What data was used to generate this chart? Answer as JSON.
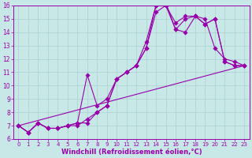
{
  "xlabel": "Windchill (Refroidissement éolien,°C)",
  "xlim": [
    -0.5,
    23.5
  ],
  "ylim": [
    6,
    16
  ],
  "yticks": [
    6,
    7,
    8,
    9,
    10,
    11,
    12,
    13,
    14,
    15,
    16
  ],
  "xticks": [
    0,
    1,
    2,
    3,
    4,
    5,
    6,
    7,
    8,
    9,
    10,
    11,
    12,
    13,
    14,
    15,
    16,
    17,
    18,
    19,
    20,
    21,
    22,
    23
  ],
  "bg_color": "#c8e8e8",
  "line_color": "#9900aa",
  "grid_color": "#aacfcf",
  "line_straight": {
    "x": [
      0,
      23
    ],
    "y": [
      7.0,
      11.5
    ]
  },
  "line1": {
    "x": [
      0,
      1,
      2,
      3,
      4,
      5,
      6,
      7,
      8,
      9,
      10,
      11,
      12,
      13,
      14,
      15,
      16,
      17,
      18,
      19,
      20,
      21,
      22,
      23
    ],
    "y": [
      7.0,
      6.5,
      7.2,
      6.8,
      6.8,
      7.0,
      7.0,
      7.5,
      8.0,
      8.5,
      10.5,
      11.0,
      11.5,
      12.8,
      16.0,
      16.2,
      14.2,
      15.0,
      15.2,
      14.6,
      15.0,
      11.8,
      11.5,
      11.5
    ]
  },
  "line2": {
    "x": [
      0,
      1,
      2,
      3,
      4,
      5,
      6,
      7,
      8,
      9,
      10,
      11,
      12,
      13,
      14,
      15,
      16,
      17,
      18,
      19,
      20,
      21,
      22,
      23
    ],
    "y": [
      7.0,
      6.5,
      7.2,
      6.8,
      6.8,
      7.0,
      7.2,
      10.8,
      8.5,
      9.0,
      10.5,
      11.0,
      11.5,
      13.3,
      16.0,
      16.0,
      14.2,
      14.0,
      15.2,
      15.0,
      12.8,
      12.0,
      11.8,
      11.5
    ]
  },
  "line3": {
    "x": [
      0,
      1,
      2,
      3,
      4,
      5,
      6,
      7,
      8,
      9,
      10,
      11,
      12,
      13,
      14,
      15,
      16,
      17,
      18,
      19,
      20,
      21,
      22,
      23
    ],
    "y": [
      7.0,
      6.5,
      7.2,
      6.8,
      6.8,
      7.0,
      7.2,
      7.2,
      8.0,
      8.5,
      10.5,
      11.0,
      11.5,
      12.8,
      15.5,
      16.0,
      14.7,
      15.2,
      15.2,
      14.6,
      15.0,
      11.8,
      11.5,
      11.5
    ]
  }
}
